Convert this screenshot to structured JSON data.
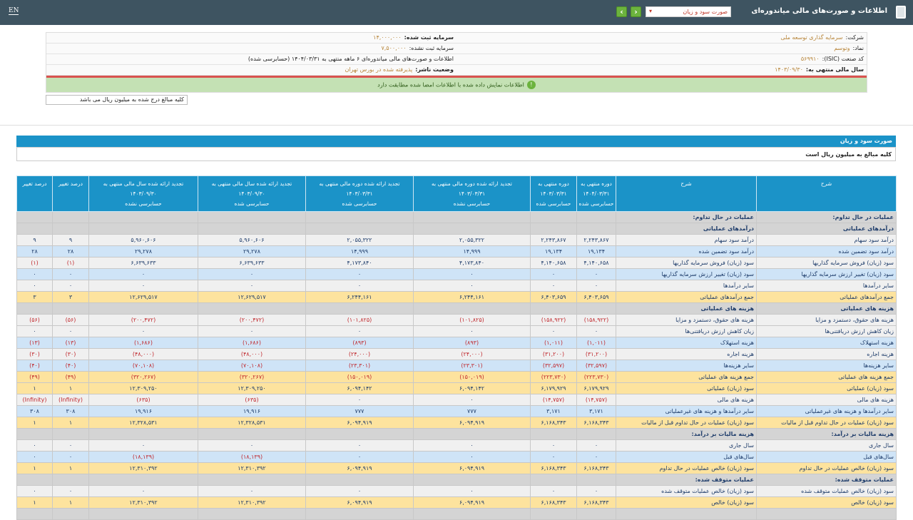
{
  "header": {
    "title": "اطلاعات و صورت‌های مالی میاندوره‌ای",
    "selected_report": "صورت سود و زیان",
    "lang": "EN",
    "prev": "‹",
    "next": "›"
  },
  "info": {
    "company_label": "شرکت:",
    "company": "سرمایه گذاری توسعه ملی",
    "symbol_label": "نماد:",
    "symbol": "وتوسم",
    "isic_label": "کد صنعت (ISIC):",
    "isic": "۵۶۹۹۱۰",
    "fy_label": "سال مالی منتهی به:",
    "fy": "۱۴۰۳/۰۹/۳۰",
    "capital_label": "سرمایه ثبت شده:",
    "capital": "۱۴,۰۰۰,۰۰۰",
    "unreg_label": "سرمایه ثبت نشده:",
    "unreg": "۷,۵۰۰,۰۰۰",
    "statement": "اطلاعات و صورت‌های مالی میاندوره‌ای ۶ ماهه منتهی به ۱۴۰۴/۰۳/۳۱ (حسابرسی شده)",
    "status_label": "وضعیت ناشر:",
    "status": "پذیرفته شده در بورس تهران",
    "verified": "اطلاعات نمایش داده شده با اطلاعات امضا شده مطابقت دارد",
    "verified_icon": "!"
  },
  "note": "کلیه مبالغ درج شده به میلیون ریال می باشد",
  "section": {
    "title": "صورت سود و زیان",
    "subtitle": "کلیه مبالغ به میلیون ریال است"
  },
  "table": {
    "columns": [
      [
        "شرح"
      ],
      [
        "شرح"
      ],
      [
        "دوره منتهی به",
        "۱۴۰۴/۰۳/۳۱",
        "حسابرسی شده"
      ],
      [
        "دوره منتهی به",
        "۱۴۰۳/۰۳/۳۱",
        "حسابرسی شده"
      ],
      [
        "تجدید ارائه شده دوره مالی منتهی به",
        "۱۴۰۳/۰۳/۳۱",
        "حسابرسی نشده"
      ],
      [
        "تجدید ارائه شده دوره مالی منتهی به",
        "۱۴۰۳/۰۳/۳۱",
        "حسابرسی شده"
      ],
      [
        "تجدید ارائه شده سال مالی منتهی به",
        "۱۴۰۳/۰۹/۳۰",
        "حسابرسی شده"
      ],
      [
        "تجدید ارائه شده سال مالی منتهی به",
        "۱۴۰۳/۰۹/۳۰",
        "حسابرسی نشده"
      ],
      [
        "درصد تغییر"
      ],
      [
        "درصد تغییر"
      ]
    ],
    "rows": [
      {
        "t": "g",
        "d": "عملیات در حال تداوم:",
        "v": [
          "",
          "",
          "",
          "",
          "",
          "",
          "",
          ""
        ]
      },
      {
        "t": "g",
        "d": "درآمدهای عملیاتی",
        "v": [
          "",
          "",
          "",
          "",
          "",
          "",
          "",
          ""
        ]
      },
      {
        "t": "w",
        "d": "درآمد سود سهام",
        "v": [
          "۲,۲۴۳,۸۶۷",
          "۲,۲۴۳,۸۶۷",
          "۲,۰۵۵,۳۲۲",
          "۲,۰۵۵,۳۲۲",
          "۵,۹۶۰,۶۰۶",
          "۵,۹۶۰,۶۰۶",
          "۹",
          "۹"
        ]
      },
      {
        "t": "b",
        "d": "درآمد سود تضمین شده",
        "v": [
          "۱۹,۱۳۴",
          "۱۹,۱۳۴",
          "۱۴,۹۹۹",
          "۱۴,۹۹۹",
          "۲۹,۲۷۸",
          "۲۹,۲۷۸",
          "۲۸",
          "۲۸"
        ]
      },
      {
        "t": "w",
        "d": "سود (زیان) فروش سرمایه گذاریها",
        "v": [
          "۴,۱۴۰,۶۵۸",
          "۴,۱۴۰,۶۵۸",
          "۴,۱۷۳,۸۴۰",
          "۴,۱۷۳,۸۴۰",
          "۶,۶۳۹,۶۳۳",
          "۶,۶۳۹,۶۳۳",
          "(۱)",
          "(۱)"
        ]
      },
      {
        "t": "b",
        "d": "سود (زیان) تغییر ارزش سرمایه گذاریها",
        "v": [
          "۰",
          "۰",
          "۰",
          "۰",
          "۰",
          "۰",
          "۰",
          "۰"
        ]
      },
      {
        "t": "w",
        "d": "سایر درآمدها",
        "v": [
          "۰",
          "۰",
          "۰",
          "۰",
          "۰",
          "۰",
          "۰",
          "۰"
        ]
      },
      {
        "t": "y",
        "d": "جمع درآمدهای عملیاتی",
        "v": [
          "۶,۴۰۳,۶۵۹",
          "۶,۴۰۳,۶۵۹",
          "۶,۲۴۴,۱۶۱",
          "۶,۲۴۴,۱۶۱",
          "۱۲,۶۲۹,۵۱۷",
          "۱۲,۶۲۹,۵۱۷",
          "۳",
          "۳"
        ]
      },
      {
        "t": "g",
        "d": "هزینه های عملیاتی",
        "v": [
          "",
          "",
          "",
          "",
          "",
          "",
          "",
          ""
        ]
      },
      {
        "t": "w",
        "d": "هزینه های حقوق، دستمزد و مزایا",
        "v": [
          "(۱۵۸,۹۲۲)",
          "(۱۵۸,۹۲۲)",
          "(۱۰۱,۸۲۵)",
          "(۱۰۱,۸۲۵)",
          "(۲۰۰,۴۷۲)",
          "(۲۰۰,۴۷۲)",
          "(۵۶)",
          "(۵۶)"
        ]
      },
      {
        "t": "w",
        "d": "زیان کاهش ارزش دریافتنی‌ها",
        "v": [
          "۰",
          "۰",
          "۰",
          "۰",
          "۰",
          "۰",
          "۰",
          "۰"
        ]
      },
      {
        "t": "b",
        "d": "هزینه استهلاک",
        "v": [
          "(۱,۰۱۱)",
          "(۱,۰۱۱)",
          "(۸۹۳)",
          "(۸۹۳)",
          "(۱,۶۸۶)",
          "(۱,۶۸۶)",
          "(۱۳)",
          "(۱۳)"
        ]
      },
      {
        "t": "w",
        "d": "هزینه اجاره",
        "v": [
          "(۳۱,۲۰۰)",
          "(۳۱,۲۰۰)",
          "(۲۴,۰۰۰)",
          "(۲۴,۰۰۰)",
          "(۴۸,۰۰۰)",
          "(۴۸,۰۰۰)",
          "(۳۰)",
          "(۳۰)"
        ]
      },
      {
        "t": "b",
        "d": "سایر هزینه‌ها",
        "v": [
          "(۳۲,۵۹۷)",
          "(۳۲,۵۹۷)",
          "(۲۳,۳۰۱)",
          "(۲۳,۳۰۱)",
          "(۷۰,۱۰۸)",
          "(۷۰,۱۰۸)",
          "(۴۰)",
          "(۴۰)"
        ]
      },
      {
        "t": "y",
        "d": "جمع هزینه های عملیاتی",
        "v": [
          "(۲۲۳,۷۳۰)",
          "(۲۲۳,۷۳۰)",
          "(۱۵۰,۰۱۹)",
          "(۱۵۰,۰۱۹)",
          "(۳۲۰,۲۶۷)",
          "(۳۲۰,۲۶۷)",
          "(۴۹)",
          "(۴۹)"
        ]
      },
      {
        "t": "y",
        "d": "سود (زیان) عملیاتی",
        "v": [
          "۶,۱۷۹,۹۲۹",
          "۶,۱۷۹,۹۲۹",
          "۶,۰۹۴,۱۴۲",
          "۶,۰۹۴,۱۴۲",
          "۱۲,۳۰۹,۲۵۰",
          "۱۲,۳۰۹,۲۵۰",
          "۱",
          "۱"
        ]
      },
      {
        "t": "w",
        "d": "هزینه های مالی",
        "v": [
          "(۱۴,۷۵۷)",
          "(۱۴,۷۵۷)",
          "۰",
          "۰",
          "(۶۳۵)",
          "(۶۳۵)",
          "(Infinity)",
          "(Infinity)"
        ]
      },
      {
        "t": "b",
        "d": "سایر درآمدها و هزینه های غیرعملیاتی",
        "v": [
          "۳,۱۷۱",
          "۳,۱۷۱",
          "۷۷۷",
          "۷۷۷",
          "۱۹,۹۱۶",
          "۱۹,۹۱۶",
          "۳۰۸",
          "۳۰۸"
        ]
      },
      {
        "t": "y",
        "d": "سود (زیان) عملیات در حال تداوم قبل از مالیات",
        "v": [
          "۶,۱۶۸,۳۴۳",
          "۶,۱۶۸,۳۴۳",
          "۶,۰۹۴,۹۱۹",
          "۶,۰۹۴,۹۱۹",
          "۱۲,۳۲۸,۵۳۱",
          "۱۲,۳۲۸,۵۳۱",
          "۱",
          "۱"
        ]
      },
      {
        "t": "g",
        "d": "هزینه مالیات بر درآمد:",
        "v": [
          "",
          "",
          "",
          "",
          "",
          "",
          "",
          ""
        ]
      },
      {
        "t": "w",
        "d": "سال جاری",
        "v": [
          "۰",
          "۰",
          "۰",
          "۰",
          "۰",
          "۰",
          "۰",
          "۰"
        ]
      },
      {
        "t": "b",
        "d": "سال‌های قبل",
        "v": [
          "۰",
          "۰",
          "۰",
          "۰",
          "(۱۸,۱۳۹)",
          "(۱۸,۱۳۹)",
          "۰",
          "۰"
        ]
      },
      {
        "t": "y",
        "d": "سود (زیان) خالص عملیات در حال تداوم",
        "v": [
          "۶,۱۶۸,۳۴۳",
          "۶,۱۶۸,۳۴۳",
          "۶,۰۹۴,۹۱۹",
          "۶,۰۹۴,۹۱۹",
          "۱۲,۳۱۰,۳۹۲",
          "۱۲,۳۱۰,۳۹۲",
          "۱",
          "۱"
        ]
      },
      {
        "t": "g",
        "d": "عملیات متوقف شده:",
        "v": [
          "",
          "",
          "",
          "",
          "",
          "",
          "",
          ""
        ]
      },
      {
        "t": "w",
        "d": "سود (زیان) خالص عملیات متوقف شده",
        "v": [
          "۰",
          "۰",
          "۰",
          "۰",
          "۰",
          "۰",
          "۰",
          "۰"
        ]
      },
      {
        "t": "y",
        "d": "سود (زیان) خالص",
        "v": [
          "۶,۱۶۸,۳۴۳",
          "۶,۱۶۸,۳۴۳",
          "۶,۰۹۴,۹۱۹",
          "۶,۰۹۴,۹۱۹",
          "۱۲,۳۱۰,۳۹۲",
          "۱۲,۳۱۰,۳۹۲",
          "۱",
          "۱"
        ]
      },
      {
        "t": "g",
        "d": "",
        "v": [
          "",
          "",
          "",
          "",
          "",
          "",
          "",
          ""
        ]
      }
    ]
  }
}
